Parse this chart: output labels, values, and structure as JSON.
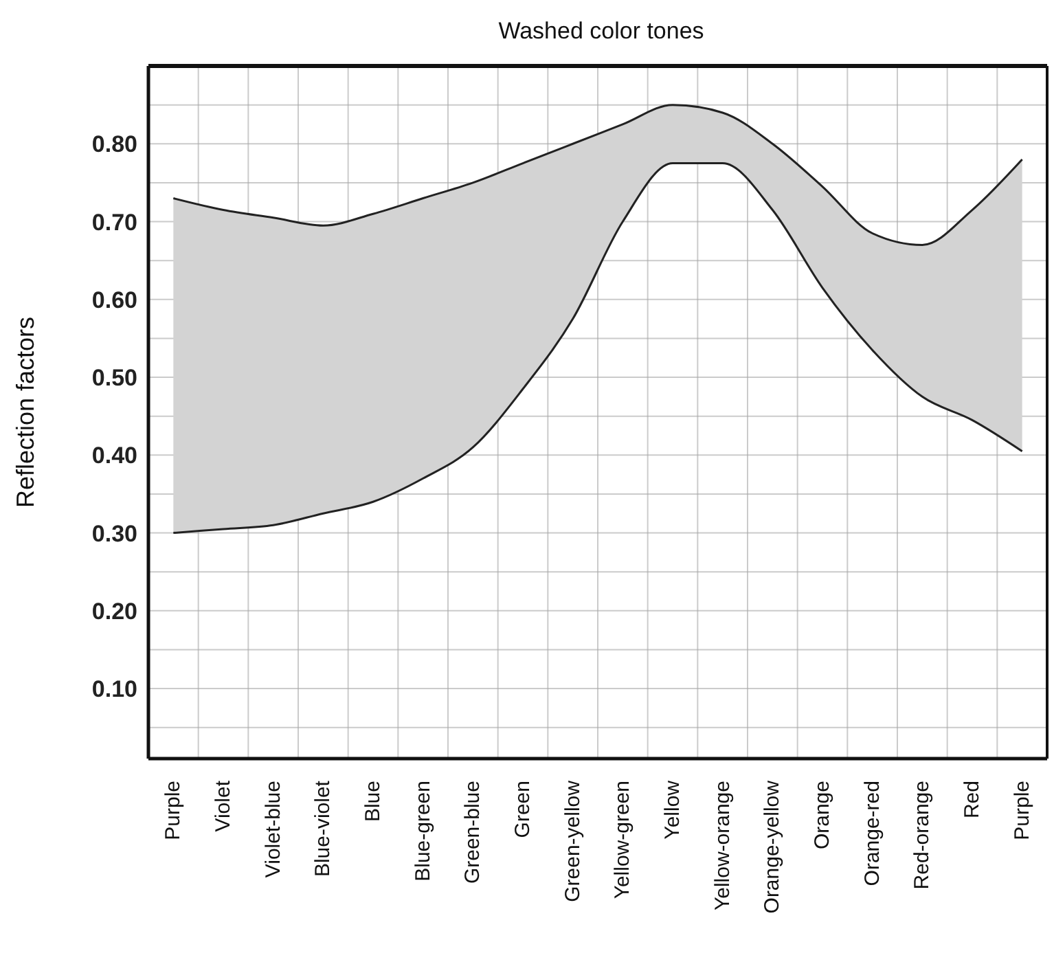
{
  "chart_data": {
    "type": "area",
    "title": "Washed color tones",
    "ylabel": "Reflection factors",
    "categories": [
      "Purple",
      "Violet",
      "Violet-blue",
      "Blue-violet",
      "Blue",
      "Blue-green",
      "Green-blue",
      "Green",
      "Green-yellow",
      "Yellow-green",
      "Yellow",
      "Yellow-orange",
      "Orange-yellow",
      "Orange",
      "Orange-red",
      "Red-orange",
      "Red",
      "Purple"
    ],
    "series": [
      {
        "color": "#d3d3d3",
        "values": [
          0.73,
          0.715,
          0.705,
          0.695,
          0.71,
          0.73,
          0.75,
          0.775,
          0.8,
          0.825,
          0.85,
          0.84,
          0.8,
          0.745,
          0.685,
          0.67,
          0.715,
          0.78
        ]
      },
      {
        "type": "line",
        "color": "#222222",
        "values": [
          0.3,
          0.305,
          0.31,
          0.325,
          0.34,
          0.37,
          0.41,
          0.485,
          0.575,
          0.7,
          0.775,
          0.775,
          0.715,
          0.615,
          0.535,
          0.475,
          0.445,
          0.405
        ]
      }
    ],
    "ylim": [
      0.01,
      0.9
    ],
    "yticks": [
      {
        "value": 0.05,
        "label": null
      },
      {
        "value": 0.1,
        "label": "0.10"
      },
      {
        "value": 0.15,
        "label": null
      },
      {
        "value": 0.2,
        "label": "0.20"
      },
      {
        "value": 0.25,
        "label": null
      },
      {
        "value": 0.3,
        "label": "0.30"
      },
      {
        "value": 0.35,
        "label": null
      },
      {
        "value": 0.4,
        "label": "0.40"
      },
      {
        "value": 0.45,
        "label": null
      },
      {
        "value": 0.5,
        "label": "0.50"
      },
      {
        "value": 0.55,
        "label": null
      },
      {
        "value": 0.6,
        "label": "0.60"
      },
      {
        "value": 0.65,
        "label": null
      },
      {
        "value": 0.7,
        "label": "0.70"
      },
      {
        "value": 0.75,
        "label": null
      },
      {
        "value": 0.8,
        "label": "0.80"
      },
      {
        "value": 0.85,
        "label": null
      }
    ],
    "grid": true
  }
}
